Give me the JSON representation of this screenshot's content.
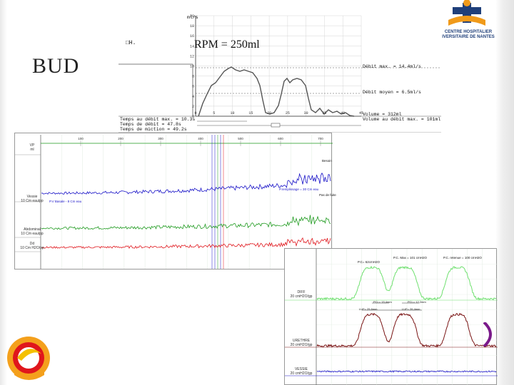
{
  "slide": {
    "title": "BUD",
    "rpm": "RPM = 250ml"
  },
  "logo": {
    "name_line1": "CENTRE HOSPITALIER",
    "name_line2": "IVERSITAIRE DE NANTES"
  },
  "uroflowmetry": {
    "header_left": "□H.",
    "y_unit": "ml/s",
    "y_ticks": [
      "20",
      "18",
      "16",
      "14",
      "12",
      "10",
      "8",
      "6",
      "4",
      "2",
      "0"
    ],
    "x_ticks": [
      "0",
      "5",
      "10",
      "15",
      "20",
      "25",
      "30",
      "35",
      "40",
      "45"
    ],
    "debit_max": "Débit max. = 14.4ml/s",
    "debit_moyen": "Débit moyen = 6.5ml/s",
    "volume": "Volume = 312ml",
    "volume_au_debit_max": "Volume au débit max. = 101ml",
    "temps_au_debit_max": "Temps au débit max. = 10.3s",
    "temps_de_debit": "Temps de débit = 47.8s",
    "temps_de_miction": "Temps de miction = 49.2s",
    "colors": {
      "trace": "#555555",
      "grid": "#cccccc"
    }
  },
  "cystometry": {
    "time_ticks": [
      "100",
      "200",
      "300",
      "400",
      "500",
      "600",
      "700"
    ],
    "channels": [
      {
        "label": "VP",
        "sub": "ml"
      },
      {
        "label": "Vessie",
        "sub": "10 Cm eau/pp"
      },
      {
        "label": "Abdominal",
        "sub": "10 Cm eau/pp"
      },
      {
        "label": "Dd",
        "sub": "10 Cm H2O/pp"
      }
    ],
    "annotations": {
      "basal": "P.V Basale - 8 Cm eau",
      "remplissage": "P.remplissage = 30 Cm eau",
      "besoin": "Besoin",
      "pas_de_fuite": "Pas de fuite"
    },
    "colors": {
      "vessie": "#1a14c8",
      "abdominal": "#1e9a1e",
      "detrusor": "#e0161c"
    }
  },
  "pressure_profile": {
    "channels": [
      {
        "label": "DIFF",
        "sub": "20 cmH2O/gp"
      },
      {
        "label": "URETHRE",
        "sub": "20 cmH2O/gp"
      },
      {
        "label": "VESSIE",
        "sub": "20 cmH2O/gp"
      }
    ],
    "peaks": [
      {
        "label": "P.C= 62cmH2O"
      },
      {
        "label": "P.C. Max = 101 cmH2O"
      },
      {
        "label": "P.C. retenue = 100 cmH2O"
      }
    ],
    "lf": [
      {
        "label": "PCL= 15,4mm",
        "lfu": "LUF= 25,6mm"
      },
      {
        "label": "PCL= 12,2mm",
        "lfu": "LUF= 26,4mm"
      }
    ],
    "colors": {
      "diff": "#6fe06f",
      "urethre": "#7a1414",
      "vessie": "#1a14c8"
    }
  }
}
